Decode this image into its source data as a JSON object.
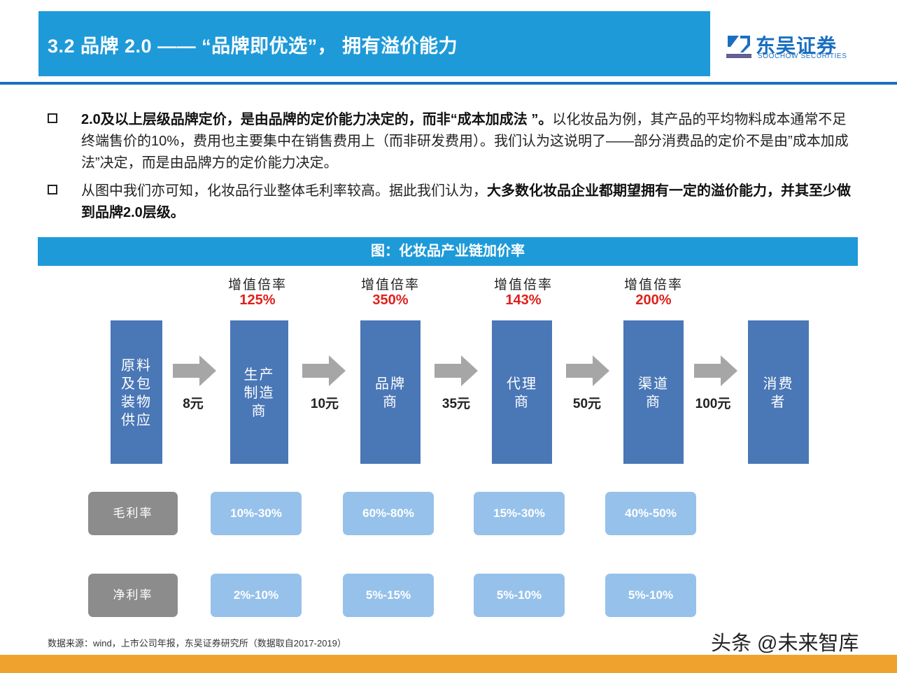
{
  "header": {
    "title": "3.2 品牌 2.0 —— “品牌即优选”， 拥有溢价能力",
    "logo_cn": "东吴证券",
    "logo_en": "SOOCHOW SECURITIES",
    "bar_color": "#1e9ad9"
  },
  "bullets": [
    {
      "icon": "checkbox-square-icon",
      "bold_prefix": "2.0及以上层级品牌定价，是由品牌的定价能力决定的，而非“成本加成法 ”。",
      "text": "以化妆品为例，其产品的平均物料成本通常不足终端售价的10%，费用也主要集中在销售费用上（而非研发费用）。我们认为这说明了——部分消费品的定价不是由”成本加成法”决定，而是由品牌方的定价能力决定。"
    },
    {
      "icon": "checkbox-square-icon",
      "text": "从图中我们亦可知，化妆品行业整体毛利率较高。据此我们认为，",
      "bold_suffix": "大多数化妆品企业都期望拥有一定的溢价能力，并其至少做到品牌2.0层级。"
    }
  ],
  "figure": {
    "title": "图：化妆品产业链加价率",
    "rate_label": "增值倍率",
    "rates": [
      "125%",
      "350%",
      "143%",
      "200%"
    ],
    "stages": [
      "原料\n及包\n装物\n供应",
      "生产\n制造\n商",
      "品牌\n商",
      "代理\n商",
      "渠道\n商",
      "消费\n者"
    ],
    "prices": [
      "8元",
      "10元",
      "35元",
      "50元",
      "100元"
    ],
    "gross_margin": {
      "label": "毛利率",
      "values": [
        "10%-30%",
        "60%-80%",
        "15%-30%",
        "40%-50%"
      ]
    },
    "net_margin": {
      "label": "净利率",
      "values": [
        "2%-10%",
        "5%-15%",
        "5%-10%",
        "5%-10%"
      ]
    },
    "colors": {
      "stage": "#4a77b6",
      "metric": "#96c1ea",
      "label": "#8c8c8c",
      "rate": "#e0201b"
    }
  },
  "footer": {
    "source": "数据来源：wind，上市公司年报，东吴证券研究所（数据取自2017-2019）",
    "watermark": "头条 @未来智库",
    "bar_color": "#f0a22f"
  }
}
